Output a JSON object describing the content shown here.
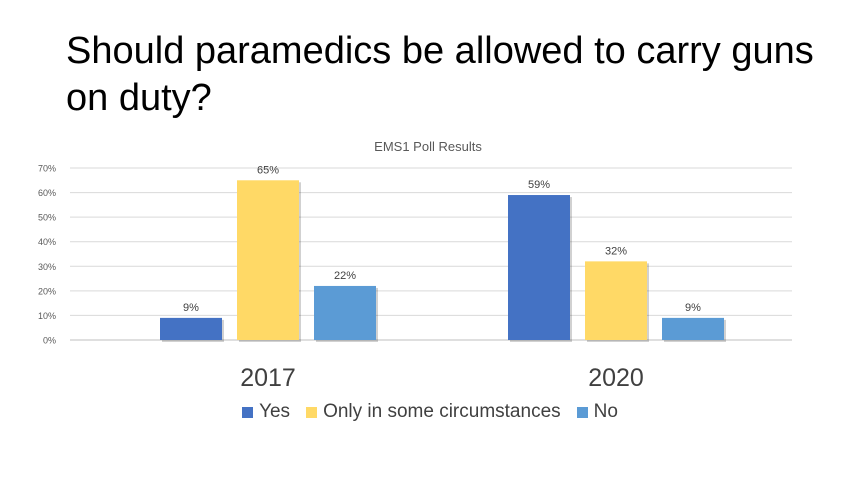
{
  "title": "Should paramedics be allowed to carry guns on duty?",
  "chart_data": {
    "type": "bar",
    "title": "EMS1 Poll Results",
    "categories": [
      "2017",
      "2020"
    ],
    "series": [
      {
        "name": "Yes",
        "values": [
          9,
          59
        ],
        "labels": [
          "9%",
          "59%"
        ],
        "color": "#4472C4"
      },
      {
        "name": "Only in some circumstances",
        "values": [
          65,
          32
        ],
        "labels": [
          "65%",
          "32%"
        ],
        "color": "#FFD966"
      },
      {
        "name": "No",
        "values": [
          22,
          9
        ],
        "labels": [
          "22%",
          "9%"
        ],
        "color": "#5B9BD5"
      }
    ],
    "ylim": [
      0,
      70
    ],
    "yticks": [
      "0%",
      "10%",
      "20%",
      "30%",
      "40%",
      "50%",
      "60%",
      "70%"
    ],
    "grid": true,
    "legend": "bottom"
  }
}
